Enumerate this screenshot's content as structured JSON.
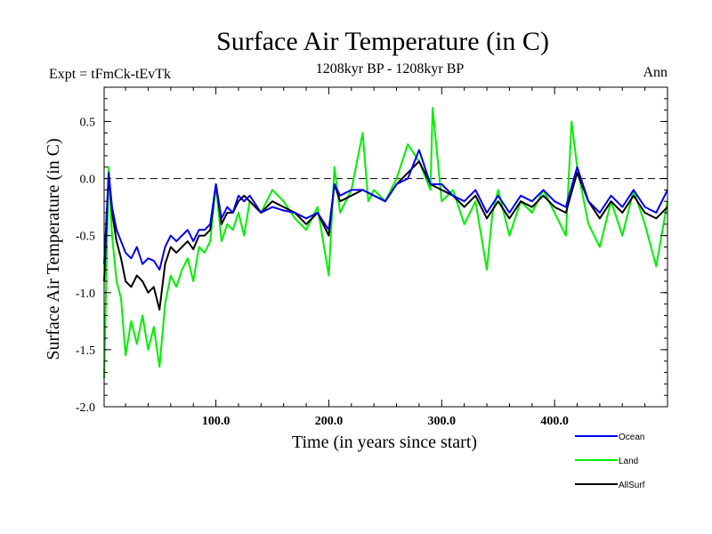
{
  "chart_data": {
    "type": "line",
    "title": "Surface Air Temperature (in C)",
    "subtitle": "1208kyr BP - 1208kyr BP",
    "left_label": "Expt = tFmCk-tEvTk",
    "right_label": "Ann",
    "xlabel": "Time (in years since start)",
    "ylabel": "Surface Air Temperature (in C)",
    "xlim": [
      1,
      500
    ],
    "ylim": [
      -2.0,
      0.8
    ],
    "xticks": [
      100,
      200,
      300,
      400
    ],
    "xtick_labels": [
      "100.0",
      "200.0",
      "300.0",
      "400.0"
    ],
    "yticks": [
      -2.0,
      -1.5,
      -1.0,
      -0.5,
      0.0,
      0.5
    ],
    "ytick_labels": [
      "-2.0",
      "-1.5",
      "-1.0",
      "-0.5",
      "0.0",
      "0.5"
    ],
    "reference_line": 0.0,
    "legend_position": "bottom-right",
    "series": [
      {
        "name": "Land",
        "color": "#00ee00",
        "x": [
          1,
          5,
          8,
          12,
          16,
          20,
          25,
          30,
          35,
          40,
          45,
          50,
          55,
          60,
          65,
          70,
          75,
          80,
          85,
          90,
          95,
          100,
          105,
          110,
          115,
          120,
          125,
          130,
          140,
          150,
          160,
          170,
          180,
          190,
          200,
          205,
          210,
          220,
          230,
          235,
          240,
          250,
          260,
          270,
          280,
          290,
          292,
          300,
          310,
          320,
          330,
          340,
          345,
          350,
          360,
          370,
          380,
          390,
          400,
          410,
          415,
          420,
          430,
          440,
          450,
          460,
          470,
          480,
          490,
          500
        ],
        "values": [
          -1.75,
          0.1,
          -0.5,
          -0.9,
          -1.05,
          -1.55,
          -1.25,
          -1.45,
          -1.2,
          -1.5,
          -1.3,
          -1.65,
          -1.1,
          -0.85,
          -0.95,
          -0.8,
          -0.7,
          -0.9,
          -0.6,
          -0.65,
          -0.55,
          -0.05,
          -0.55,
          -0.4,
          -0.45,
          -0.3,
          -0.5,
          -0.2,
          -0.3,
          -0.1,
          -0.2,
          -0.35,
          -0.45,
          -0.25,
          -0.85,
          0.1,
          -0.3,
          -0.1,
          0.4,
          -0.2,
          -0.1,
          -0.2,
          0.0,
          0.3,
          0.15,
          -0.1,
          0.62,
          -0.2,
          -0.1,
          -0.4,
          -0.2,
          -0.8,
          -0.3,
          -0.1,
          -0.5,
          -0.2,
          -0.3,
          -0.1,
          -0.3,
          -0.5,
          0.5,
          0.1,
          -0.4,
          -0.6,
          -0.2,
          -0.5,
          -0.1,
          -0.4,
          -0.77,
          -0.2
        ]
      },
      {
        "name": "AllSurf",
        "color": "#000000",
        "x": [
          1,
          5,
          8,
          12,
          16,
          20,
          25,
          30,
          35,
          40,
          45,
          50,
          55,
          60,
          65,
          70,
          75,
          80,
          85,
          90,
          95,
          100,
          105,
          110,
          115,
          120,
          125,
          130,
          140,
          150,
          160,
          170,
          180,
          190,
          200,
          205,
          210,
          220,
          230,
          240,
          250,
          260,
          270,
          280,
          290,
          300,
          310,
          320,
          330,
          340,
          350,
          360,
          370,
          380,
          390,
          400,
          410,
          420,
          430,
          440,
          450,
          460,
          470,
          480,
          490,
          500
        ],
        "values": [
          -0.9,
          0.05,
          -0.3,
          -0.55,
          -0.7,
          -0.9,
          -0.95,
          -0.85,
          -0.9,
          -1.0,
          -0.95,
          -1.15,
          -0.75,
          -0.6,
          -0.65,
          -0.6,
          -0.55,
          -0.62,
          -0.5,
          -0.5,
          -0.45,
          -0.05,
          -0.4,
          -0.3,
          -0.3,
          -0.2,
          -0.15,
          -0.2,
          -0.3,
          -0.2,
          -0.25,
          -0.3,
          -0.4,
          -0.3,
          -0.5,
          -0.05,
          -0.2,
          -0.15,
          -0.1,
          -0.15,
          -0.2,
          -0.05,
          0.05,
          0.15,
          -0.05,
          -0.1,
          -0.15,
          -0.25,
          -0.15,
          -0.35,
          -0.2,
          -0.35,
          -0.2,
          -0.25,
          -0.15,
          -0.25,
          -0.3,
          0.05,
          -0.2,
          -0.35,
          -0.2,
          -0.3,
          -0.15,
          -0.3,
          -0.35,
          -0.25
        ]
      },
      {
        "name": "Ocean",
        "color": "#0000ee",
        "x": [
          1,
          5,
          8,
          12,
          16,
          20,
          25,
          30,
          35,
          40,
          45,
          50,
          55,
          60,
          65,
          70,
          75,
          80,
          85,
          90,
          95,
          100,
          105,
          110,
          115,
          120,
          125,
          130,
          140,
          150,
          160,
          170,
          180,
          190,
          200,
          205,
          210,
          220,
          230,
          240,
          250,
          260,
          270,
          280,
          290,
          300,
          310,
          320,
          330,
          340,
          350,
          360,
          370,
          380,
          390,
          400,
          410,
          420,
          430,
          440,
          450,
          460,
          470,
          480,
          490,
          500
        ],
        "values": [
          -0.75,
          0.05,
          -0.25,
          -0.45,
          -0.55,
          -0.65,
          -0.7,
          -0.6,
          -0.75,
          -0.7,
          -0.72,
          -0.8,
          -0.6,
          -0.5,
          -0.55,
          -0.5,
          -0.45,
          -0.55,
          -0.45,
          -0.45,
          -0.4,
          -0.05,
          -0.35,
          -0.25,
          -0.3,
          -0.15,
          -0.2,
          -0.15,
          -0.3,
          -0.25,
          -0.28,
          -0.3,
          -0.35,
          -0.3,
          -0.45,
          -0.05,
          -0.15,
          -0.1,
          -0.1,
          -0.15,
          -0.2,
          -0.05,
          0.0,
          0.25,
          -0.05,
          -0.05,
          -0.15,
          -0.2,
          -0.1,
          -0.3,
          -0.15,
          -0.3,
          -0.15,
          -0.2,
          -0.1,
          -0.2,
          -0.25,
          0.1,
          -0.2,
          -0.3,
          -0.15,
          -0.25,
          -0.1,
          -0.25,
          -0.3,
          -0.1
        ]
      }
    ],
    "legend_order": [
      "Ocean",
      "Land",
      "AllSurf"
    ]
  }
}
